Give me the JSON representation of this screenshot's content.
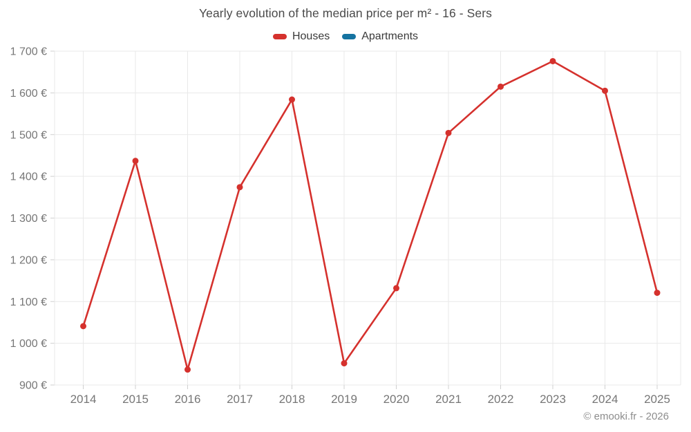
{
  "title": "Yearly evolution of the median price per m² - 16 - Sers",
  "legend": [
    {
      "label": "Houses",
      "color": "#d5312d"
    },
    {
      "label": "Apartments",
      "color": "#1573a1"
    }
  ],
  "footer": {
    "text": "© emooki.fr - 2026"
  },
  "chart_data": {
    "type": "line",
    "title": "Yearly evolution of the median price per m² - 16 - Sers",
    "categories": [
      "2014",
      "2015",
      "2016",
      "2017",
      "2018",
      "2019",
      "2020",
      "2021",
      "2022",
      "2023",
      "2024",
      "2025"
    ],
    "series": [
      {
        "name": "Houses",
        "color": "#d5312d",
        "values": [
          1041,
          1437,
          937,
          1374,
          1584,
          952,
          1132,
          1504,
          1615,
          1676,
          1605,
          1121
        ]
      },
      {
        "name": "Apartments",
        "color": "#1573a1",
        "values": []
      }
    ],
    "ylim": [
      900,
      1700
    ],
    "ytick_step": 100,
    "ytick_labels": [
      "900 €",
      "1 000 €",
      "1 100 €",
      "1 200 €",
      "1 300 €",
      "1 400 €",
      "1 500 €",
      "1 600 €",
      "1 700 €"
    ],
    "currency_suffix": "€",
    "grid": true,
    "legend_position": "top",
    "footer": "© emooki.fr - 2026"
  }
}
